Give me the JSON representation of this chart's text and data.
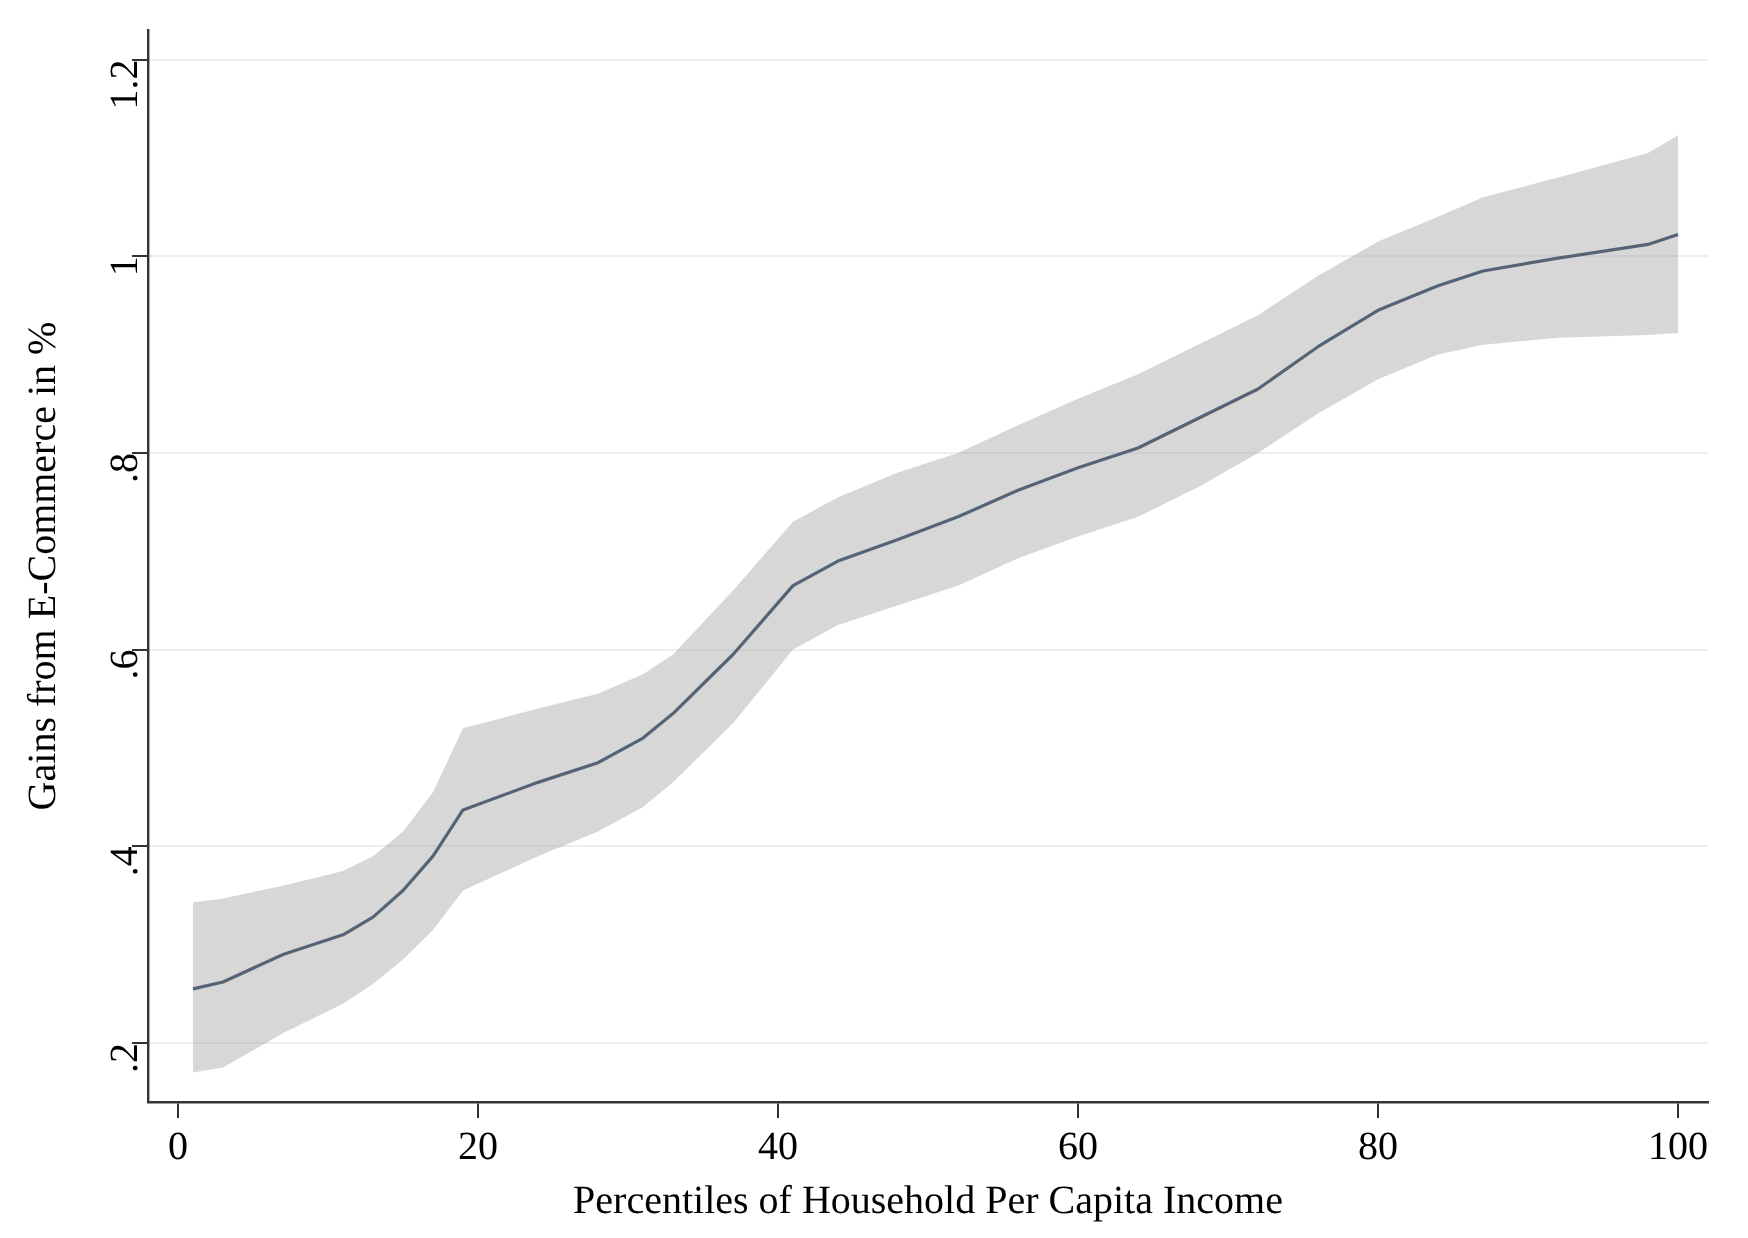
{
  "chart_data": {
    "type": "line",
    "xlabel": "Percentiles of Household Per Capita Income",
    "ylabel": "Gains from E-Commerce in %",
    "x": [
      1,
      3,
      7,
      11,
      13,
      15,
      17,
      19,
      24,
      28,
      31,
      33,
      37,
      41,
      44,
      48,
      52,
      56,
      60,
      64,
      68,
      72,
      76,
      80,
      84,
      87,
      92,
      98,
      100
    ],
    "series": [
      {
        "color": "#1f3a56",
        "values": [
          0.255,
          0.262,
          0.29,
          0.31,
          0.328,
          0.355,
          0.39,
          0.437,
          0.465,
          0.485,
          0.51,
          0.535,
          0.595,
          0.665,
          0.69,
          0.712,
          0.735,
          0.762,
          0.785,
          0.805,
          0.835,
          0.865,
          0.908,
          0.945,
          0.97,
          0.985,
          0.998,
          1.012,
          1.022
        ],
        "lower": [
          0.17,
          0.175,
          0.21,
          0.24,
          0.26,
          0.285,
          0.315,
          0.355,
          0.39,
          0.415,
          0.44,
          0.465,
          0.525,
          0.6,
          0.625,
          0.645,
          0.665,
          0.693,
          0.715,
          0.735,
          0.765,
          0.8,
          0.84,
          0.875,
          0.9,
          0.91,
          0.917,
          0.92,
          0.922
        ],
        "upper": [
          0.343,
          0.347,
          0.36,
          0.375,
          0.39,
          0.415,
          0.455,
          0.52,
          0.54,
          0.555,
          0.575,
          0.595,
          0.66,
          0.73,
          0.755,
          0.78,
          0.8,
          0.828,
          0.855,
          0.88,
          0.91,
          0.94,
          0.98,
          1.015,
          1.04,
          1.06,
          1.08,
          1.105,
          1.123
        ]
      }
    ],
    "xlim": [
      -2,
      102
    ],
    "ylim": [
      0.14,
      1.23
    ],
    "xticks": [
      0,
      20,
      40,
      60,
      80,
      100
    ],
    "yticks": [
      {
        "value": 0.2,
        "label": ".2"
      },
      {
        "value": 0.4,
        "label": ".4"
      },
      {
        "value": 0.6,
        "label": ".6"
      },
      {
        "value": 0.8,
        "label": ".8"
      },
      {
        "value": 1,
        "label": "1"
      },
      {
        "value": 1.2,
        "label": "1.2"
      }
    ],
    "grid": "y",
    "marker": "none"
  }
}
